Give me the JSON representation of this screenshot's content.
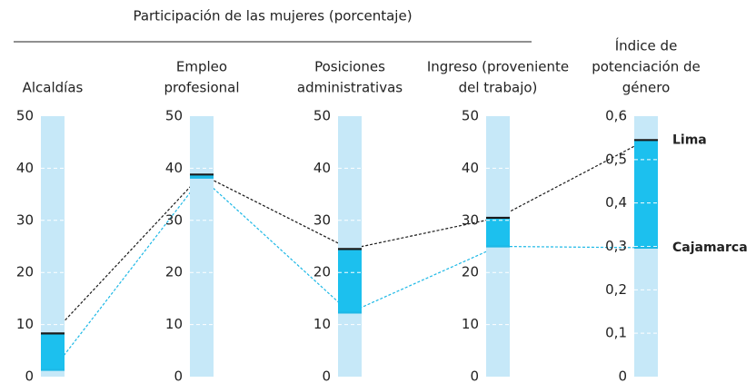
{
  "chart_data": {
    "type": "parallel",
    "title": "Participación de las mujeres (porcentaje)",
    "axes": [
      {
        "title_lines": [
          "Alcaldías"
        ],
        "ylim": [
          0,
          50
        ],
        "yticks": [
          0,
          10,
          20,
          30,
          40,
          50
        ]
      },
      {
        "title_lines": [
          "Empleo",
          "profesional"
        ],
        "ylim": [
          0,
          50
        ],
        "yticks": [
          0,
          10,
          20,
          30,
          40,
          50
        ]
      },
      {
        "title_lines": [
          "Posiciones",
          "administrativas"
        ],
        "ylim": [
          0,
          50
        ],
        "yticks": [
          0,
          10,
          20,
          30,
          40,
          50
        ]
      },
      {
        "title_lines": [
          "Ingreso (proveniente",
          "del trabajo)"
        ],
        "ylim": [
          0,
          50
        ],
        "yticks": [
          0,
          10,
          20,
          30,
          40,
          50
        ]
      },
      {
        "title_lines": [
          "Índice de",
          "potenciación de",
          "género"
        ],
        "ylim": [
          0,
          0.6
        ],
        "yticks": [
          0,
          {
            "value": 0.1,
            "label": "0,1"
          },
          {
            "value": 0.2,
            "label": "0,2"
          },
          {
            "value": 0.3,
            "label": "0,3"
          },
          {
            "value": 0.4,
            "label": "0,4"
          },
          {
            "value": 0.5,
            "label": "0,5"
          },
          {
            "value": 0.6,
            "label": "0,6"
          }
        ]
      }
    ],
    "series": [
      {
        "name": "Lima",
        "color": "#1a1a1a",
        "values": [
          8.3,
          38.8,
          24.5,
          30.5,
          0.545
        ]
      },
      {
        "name": "Cajamarca",
        "color": "#1cb8e6",
        "values": [
          1.3,
          38.2,
          12.3,
          25,
          0.297
        ]
      }
    ],
    "grid": true
  }
}
